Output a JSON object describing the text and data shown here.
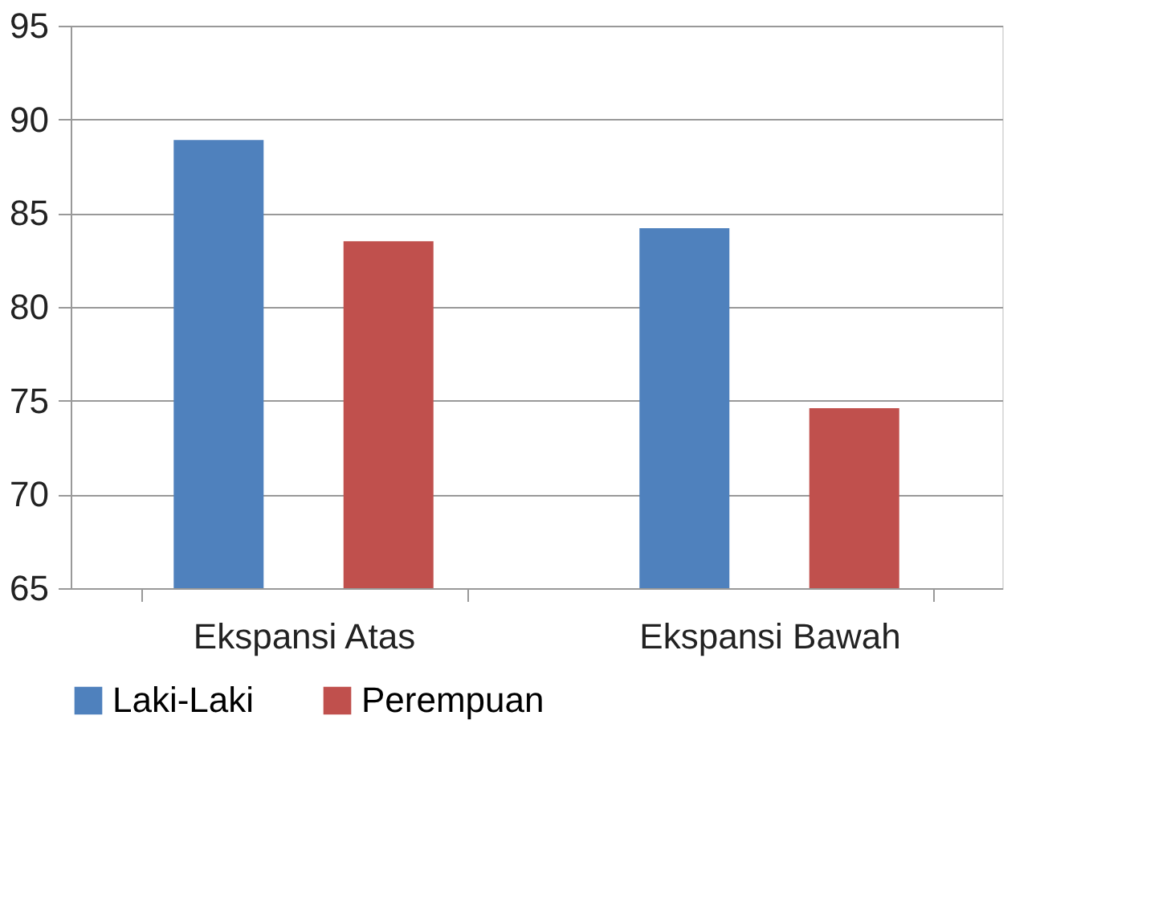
{
  "chart_data": {
    "type": "bar",
    "categories": [
      "Ekspansi Atas",
      "Ekspansi Bawah"
    ],
    "series": [
      {
        "name": "Laki-Laki",
        "color": "#4f81bd",
        "values": [
          88.9,
          84.2
        ]
      },
      {
        "name": "Perempuan",
        "color": "#c0504d",
        "values": [
          83.5,
          74.6
        ]
      }
    ],
    "ylim": [
      65,
      95
    ],
    "yticks": [
      65,
      70,
      75,
      80,
      85,
      90,
      95
    ],
    "grid": "y",
    "legend": "bottom"
  }
}
